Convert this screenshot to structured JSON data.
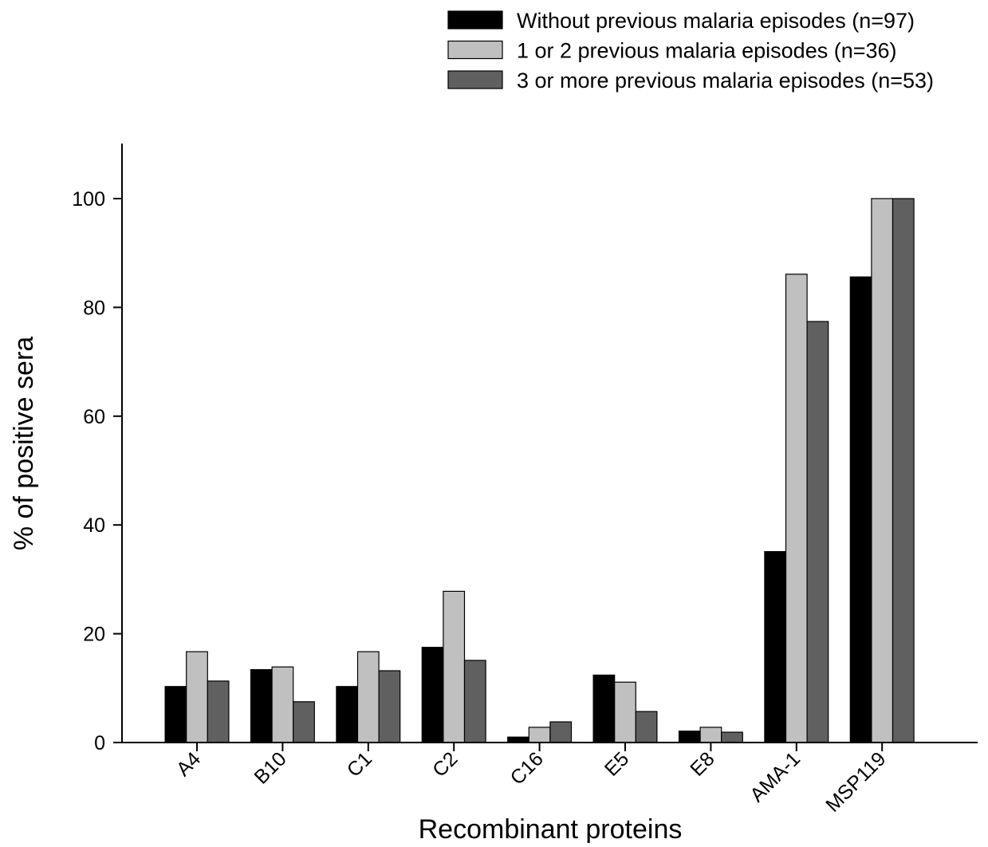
{
  "chart_data": {
    "type": "bar",
    "title": "",
    "xlabel": "Recombinant proteins",
    "ylabel": "% of positive sera",
    "ylim": [
      0,
      110
    ],
    "yticks": [
      0,
      20,
      40,
      60,
      80,
      100
    ],
    "grid": false,
    "legend_position": "top-right",
    "categories": [
      "A4",
      "B10",
      "C1",
      "C2",
      "C16",
      "E5",
      "E8",
      "AMA-1",
      "MSP119"
    ],
    "series": [
      {
        "name": "Without previous malaria episodes (n=97)",
        "color": "#000000",
        "values": [
          10.3,
          13.4,
          10.3,
          17.5,
          1.0,
          12.4,
          2.1,
          35.1,
          85.6
        ]
      },
      {
        "name": "1 or 2 previous malaria episodes (n=36)",
        "color": "#c0c0c0",
        "values": [
          16.7,
          13.9,
          16.7,
          27.8,
          2.8,
          11.1,
          2.8,
          86.1,
          100
        ]
      },
      {
        "name": "3 or more previous malaria episodes (n=53)",
        "color": "#606060",
        "values": [
          11.3,
          7.5,
          13.2,
          15.1,
          3.8,
          5.7,
          1.9,
          77.4,
          100
        ]
      }
    ]
  }
}
